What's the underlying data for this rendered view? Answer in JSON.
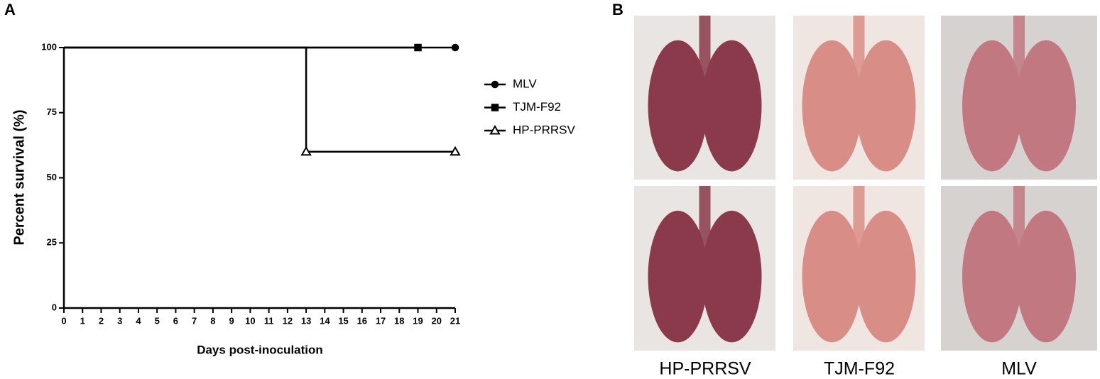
{
  "panel_a_label": "A",
  "chart_data": {
    "type": "step",
    "x_label": "Days post-inoculation",
    "y_label": "Percent survival (%)",
    "xlim": [
      0,
      21
    ],
    "xticks": [
      0,
      1,
      2,
      3,
      4,
      5,
      6,
      7,
      8,
      9,
      10,
      11,
      12,
      13,
      14,
      15,
      16,
      17,
      18,
      19,
      20,
      21
    ],
    "ylim": [
      0,
      100
    ],
    "yticks": [
      0,
      25,
      50,
      75,
      100
    ],
    "series": [
      {
        "name": "MLV",
        "color": "#000000",
        "marker": "circle",
        "x": [
          0,
          21
        ],
        "values": [
          100,
          100
        ]
      },
      {
        "name": "TJM-F92",
        "color": "#000000",
        "marker": "square",
        "x": [
          0,
          19
        ],
        "values": [
          100,
          100
        ]
      },
      {
        "name": "HP-PRRSV",
        "color": "#000000",
        "marker": "triangle",
        "x": [
          0,
          13,
          21
        ],
        "values": [
          100,
          60,
          60
        ]
      }
    ]
  },
  "panel_b": {
    "label": "B",
    "captions": [
      "HP-PRRSV",
      "TJM-F92",
      "MLV"
    ]
  }
}
